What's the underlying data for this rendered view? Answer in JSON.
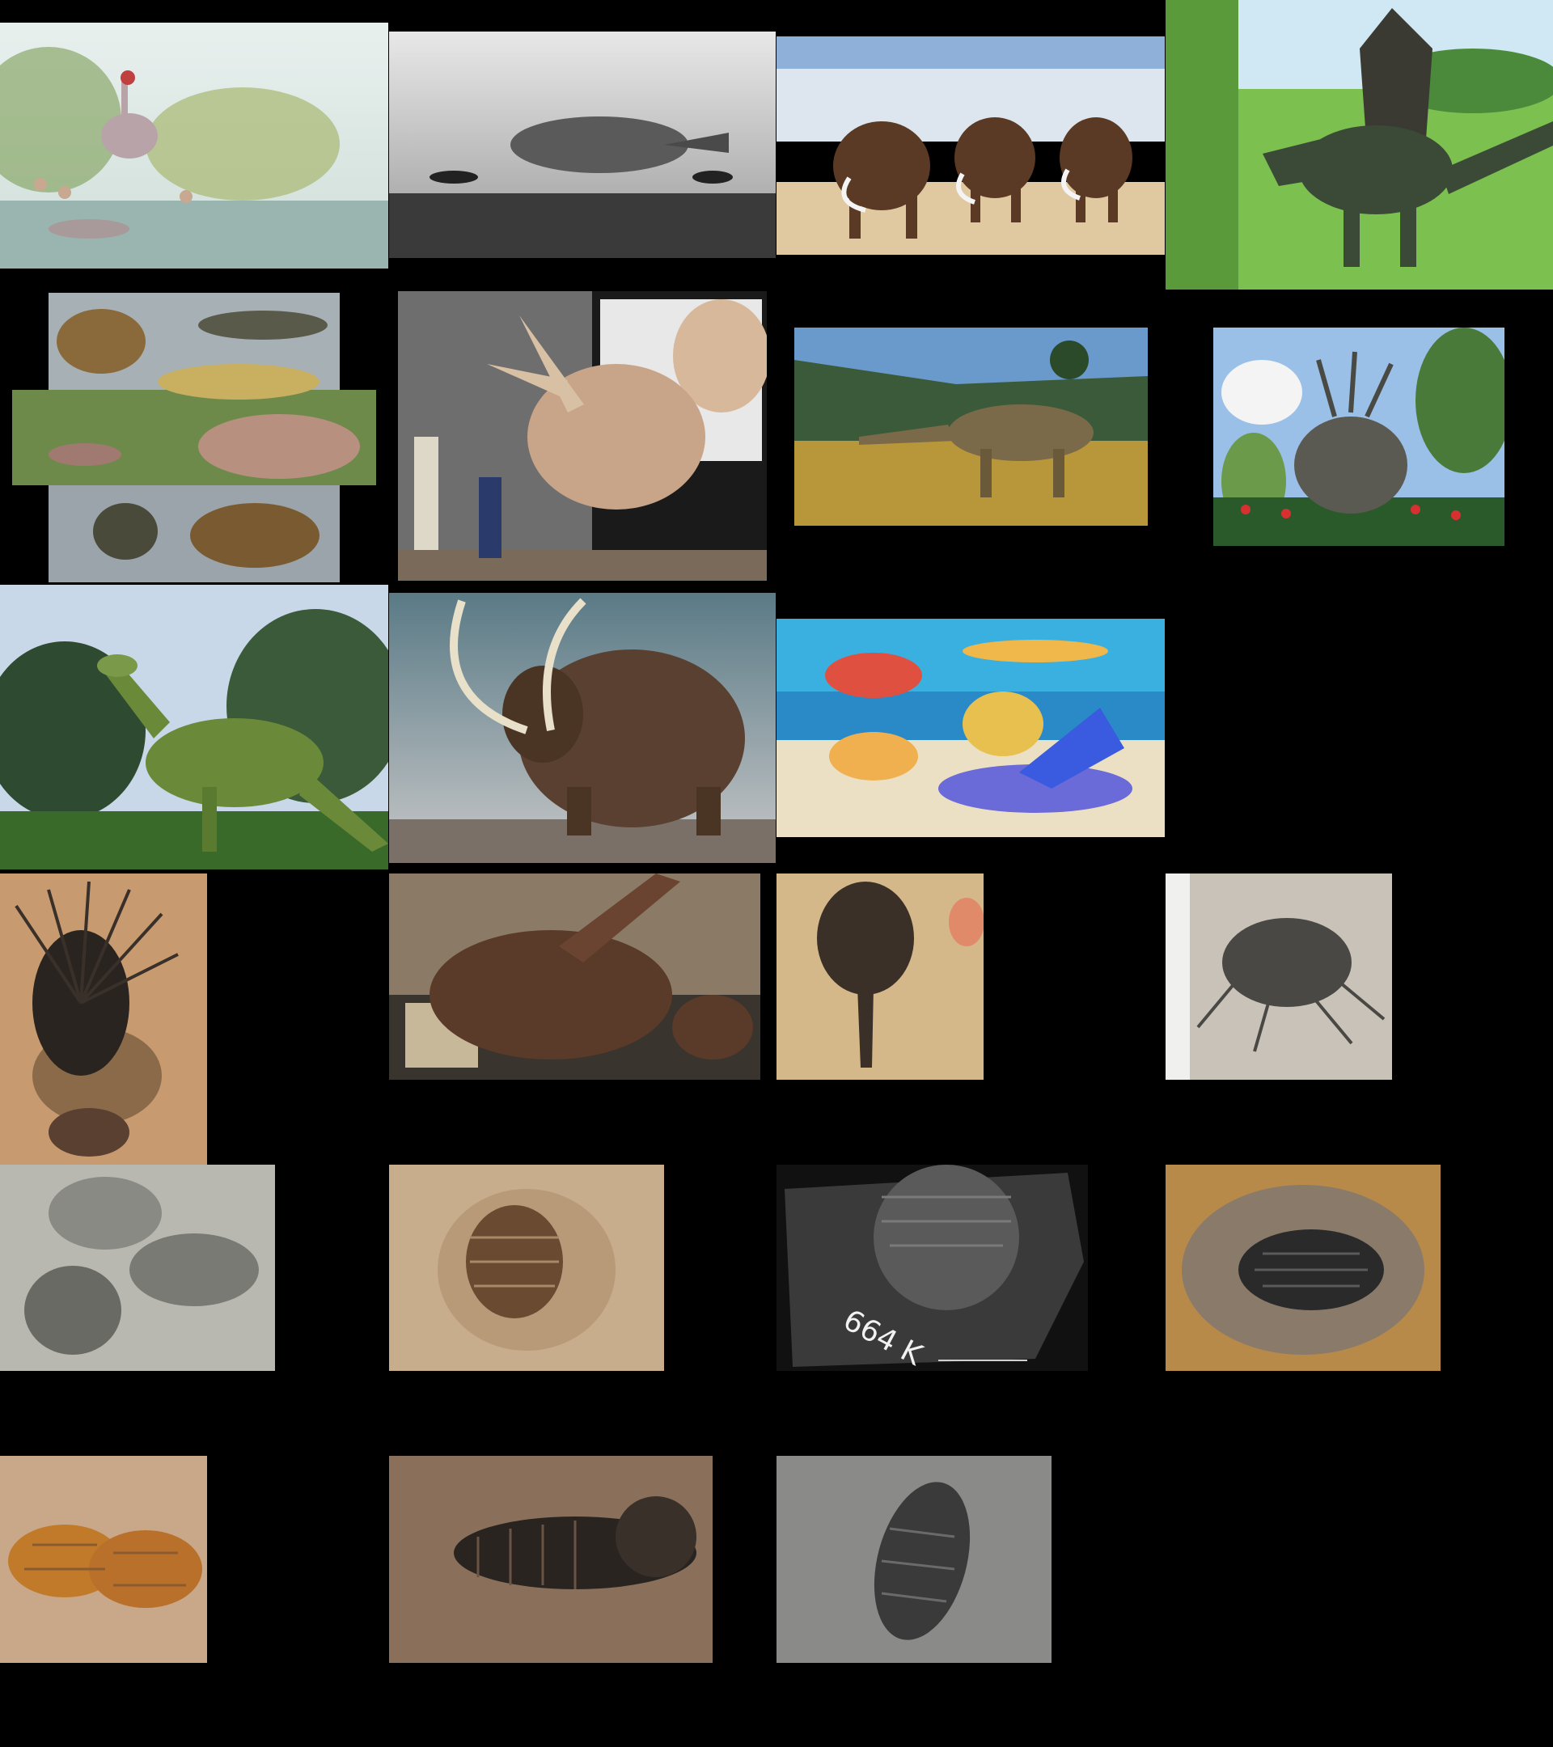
{
  "page": {
    "background": "#000000"
  },
  "tiles": [
    {
      "id": "prehistoric-swamp-herd",
      "scene": "swamp",
      "colors": [
        "#dfe9e6",
        "#7a9a5a",
        "#b8a8a8"
      ]
    },
    {
      "id": "monochrome-lake-predator",
      "scene": "mono",
      "colors": [
        "#d8d8d8",
        "#5a5a5a",
        "#222222"
      ]
    },
    {
      "id": "woolly-mammoth-herd-snow",
      "scene": "mammoths",
      "colors": [
        "#8fb0d8",
        "#f0f0f0",
        "#5a3a24"
      ]
    },
    {
      "id": "spinosaurus-grassland",
      "scene": "spino",
      "colors": [
        "#8ccf5a",
        "#3a4a36",
        "#5a9a3a"
      ]
    },
    {
      "id": "synapsid-reptiles-collage",
      "scene": "synapsids",
      "colors": [
        "#a7b0b5",
        "#6e6a4a",
        "#b89080"
      ]
    },
    {
      "id": "triceratops-skull-museum",
      "scene": "skull",
      "colors": [
        "#7c7c7c",
        "#d8b89a",
        "#5a5a5a"
      ]
    },
    {
      "id": "sauropod-coastal-hills",
      "scene": "sauropod",
      "colors": [
        "#6a9acc",
        "#b8963a",
        "#2a4a2a"
      ]
    },
    {
      "id": "styracosaurus-flowers",
      "scene": "styraco",
      "colors": [
        "#9ac0e8",
        "#5a5a52",
        "#d83030"
      ]
    },
    {
      "id": "hadrosaur-forest",
      "scene": "hadrosaur",
      "colors": [
        "#c8d8e8",
        "#2e4a30",
        "#6a8a3a"
      ]
    },
    {
      "id": "woolly-mammoth-closeup",
      "scene": "mammoth-close",
      "colors": [
        "#6a8a96",
        "#5a4030",
        "#e8e0c8"
      ]
    },
    {
      "id": "cartoon-dinosaurs-beach",
      "scene": "cartoon",
      "colors": [
        "#3ab0e0",
        "#e8d8b8",
        "#e05040"
      ]
    },
    {
      "id": "spiny-trilobite-fossil",
      "scene": "trilo-spiny",
      "colors": [
        "#c89a70",
        "#2a2420",
        "#7a5a40"
      ]
    },
    {
      "id": "horned-skull-museum-hall",
      "scene": "horn-skull",
      "colors": [
        "#8a7a66",
        "#5a3a28",
        "#c8b89a"
      ]
    },
    {
      "id": "long-snout-trilobite",
      "scene": "trilo-snout",
      "colors": [
        "#d4b88a",
        "#3a3028",
        "#8a6a48"
      ]
    },
    {
      "id": "grey-spined-trilobite",
      "scene": "trilo-grey",
      "colors": [
        "#c8c2b8",
        "#4a4844",
        "#8a8680"
      ]
    },
    {
      "id": "trilobite-cluster-slab",
      "scene": "trilo-cluster",
      "colors": [
        "#b8b8b0",
        "#6a6a64",
        "#9a9a92"
      ]
    },
    {
      "id": "oval-trilobite-tan",
      "scene": "trilo-oval",
      "colors": [
        "#c8ad8c",
        "#6a4a30",
        "#a88a68"
      ]
    },
    {
      "id": "dark-slate-trilobite",
      "scene": "trilo-slate",
      "colors": [
        "#3a3a3a",
        "#7a7a7a",
        "#1a1a1a"
      ],
      "label": "664 K"
    },
    {
      "id": "trilobite-rock-on-table",
      "scene": "trilo-rock",
      "colors": [
        "#b88a4a",
        "#2a2a2a",
        "#8a7a6a"
      ]
    },
    {
      "id": "orange-trilobite-pair",
      "scene": "trilo-orange",
      "colors": [
        "#c8a888",
        "#c07a2a",
        "#8a5a30"
      ]
    },
    {
      "id": "dark-trilobite-brown-slab",
      "scene": "trilo-dark",
      "colors": [
        "#8a705a",
        "#2a2420",
        "#6a5444"
      ]
    },
    {
      "id": "grey-trilobite-flat",
      "scene": "trilo-flat",
      "colors": [
        "#8a8a88",
        "#3a3a3a",
        "#6a6a68"
      ]
    }
  ]
}
